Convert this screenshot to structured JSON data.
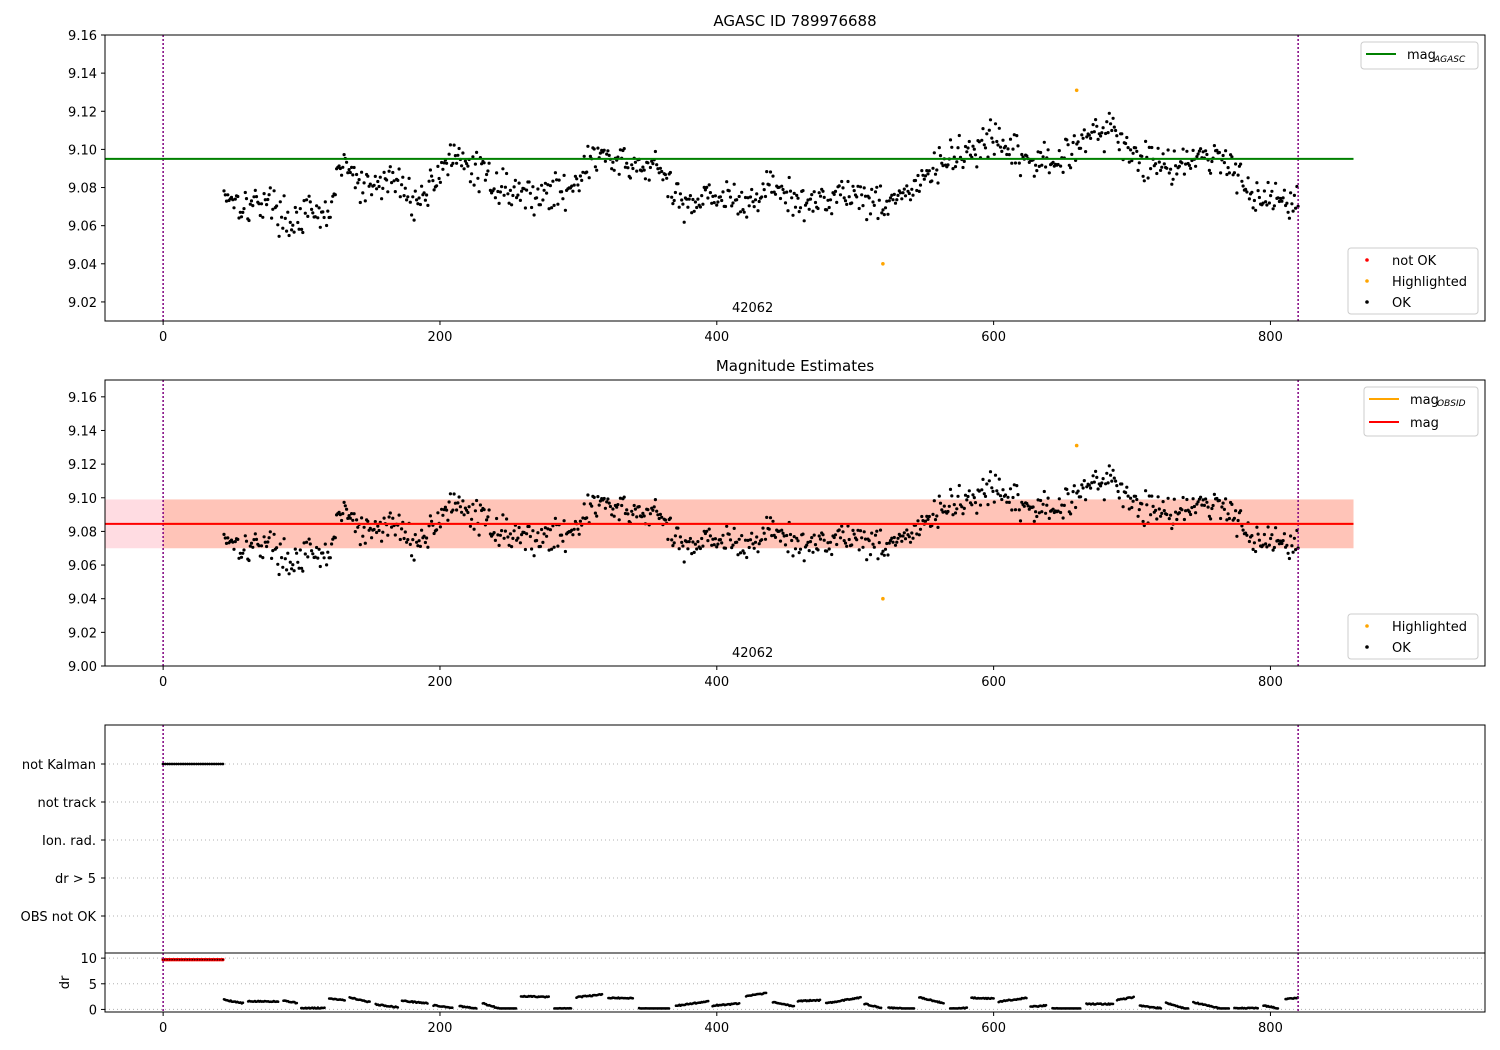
{
  "chart_data": [
    {
      "type": "scatter",
      "title": "AGASC ID 789976688",
      "xlabel": "",
      "ylabel": "",
      "xlim": [
        -42,
        955
      ],
      "ylim": [
        9.01,
        9.16
      ],
      "xticks": [
        "0",
        "200",
        "400",
        "600",
        "800"
      ],
      "yticks": [
        "9.02",
        "9.04",
        "9.06",
        "9.08",
        "9.10",
        "9.12",
        "9.14",
        "9.16"
      ],
      "obsid_label": "42062",
      "obsid_label_x": 410,
      "vlines": [
        0,
        820
      ],
      "mag_agasc": 9.095,
      "hline_range": [
        -42,
        860
      ],
      "highlighted_points": [
        {
          "x": 520,
          "y": 9.04
        },
        {
          "x": 660,
          "y": 9.131
        }
      ],
      "ok_series": {
        "x_start": 44,
        "x_end": 820,
        "count": 860,
        "seed": 17
      },
      "segments": [
        {
          "x": 44,
          "y": 9.078
        },
        {
          "x": 60,
          "y": 9.07
        },
        {
          "x": 75,
          "y": 9.074
        },
        {
          "x": 90,
          "y": 9.062
        },
        {
          "x": 105,
          "y": 9.066
        },
        {
          "x": 118,
          "y": 9.064
        },
        {
          "x": 130,
          "y": 9.094
        },
        {
          "x": 145,
          "y": 9.078
        },
        {
          "x": 165,
          "y": 9.085
        },
        {
          "x": 185,
          "y": 9.072
        },
        {
          "x": 205,
          "y": 9.095
        },
        {
          "x": 225,
          "y": 9.09
        },
        {
          "x": 245,
          "y": 9.08
        },
        {
          "x": 265,
          "y": 9.076
        },
        {
          "x": 290,
          "y": 9.078
        },
        {
          "x": 315,
          "y": 9.098
        },
        {
          "x": 335,
          "y": 9.09
        },
        {
          "x": 355,
          "y": 9.092
        },
        {
          "x": 375,
          "y": 9.07
        },
        {
          "x": 395,
          "y": 9.078
        },
        {
          "x": 420,
          "y": 9.07
        },
        {
          "x": 440,
          "y": 9.082
        },
        {
          "x": 460,
          "y": 9.07
        },
        {
          "x": 490,
          "y": 9.078
        },
        {
          "x": 520,
          "y": 9.072
        },
        {
          "x": 545,
          "y": 9.08
        },
        {
          "x": 560,
          "y": 9.092
        },
        {
          "x": 580,
          "y": 9.098
        },
        {
          "x": 600,
          "y": 9.104
        },
        {
          "x": 620,
          "y": 9.095
        },
        {
          "x": 645,
          "y": 9.092
        },
        {
          "x": 665,
          "y": 9.108
        },
        {
          "x": 685,
          "y": 9.11
        },
        {
          "x": 705,
          "y": 9.095
        },
        {
          "x": 725,
          "y": 9.092
        },
        {
          "x": 745,
          "y": 9.096
        },
        {
          "x": 770,
          "y": 9.094
        },
        {
          "x": 790,
          "y": 9.075
        },
        {
          "x": 820,
          "y": 9.074
        }
      ],
      "legend_top": [
        {
          "label": "mag",
          "subscript": "AGASC",
          "color": "#008000"
        }
      ],
      "legend_bottom": [
        {
          "label": "not OK",
          "color": "#ff0000"
        },
        {
          "label": "Highlighted",
          "color": "#ffa500"
        },
        {
          "label": "OK",
          "color": "#000000"
        }
      ]
    },
    {
      "type": "scatter",
      "title": "Magnitude Estimates",
      "xlabel": "",
      "ylabel": "",
      "xlim": [
        -42,
        955
      ],
      "ylim": [
        9.0,
        9.17
      ],
      "xticks": [
        "0",
        "200",
        "400",
        "600",
        "800"
      ],
      "yticks": [
        "9.00",
        "9.02",
        "9.04",
        "9.06",
        "9.08",
        "9.10",
        "9.12",
        "9.14",
        "9.16"
      ],
      "obsid_label": "42062",
      "obsid_label_x": 410,
      "vlines": [
        0,
        820
      ],
      "mag": 9.0845,
      "mag_band": [
        9.07,
        9.099
      ],
      "mag_obsid": 9.0845,
      "mag_obsid_band": [
        9.07,
        9.099
      ],
      "mag_obsid_range": [
        0,
        860
      ],
      "band_range": [
        -42,
        860
      ],
      "highlighted_points": [
        {
          "x": 520,
          "y": 9.04
        },
        {
          "x": 660,
          "y": 9.131
        }
      ],
      "legend_top": [
        {
          "label": "mag",
          "subscript": "OBSID",
          "color": "#ffa500"
        },
        {
          "label": "mag",
          "subscript": "",
          "color": "#ff0000"
        }
      ],
      "legend_bottom": [
        {
          "label": "Highlighted",
          "color": "#ffa500"
        },
        {
          "label": "OK",
          "color": "#000000"
        }
      ]
    },
    {
      "type": "scatter",
      "title": "",
      "xlim": [
        -42,
        955
      ],
      "categories": [
        "not Kalman",
        "not track",
        "Ion. rad.",
        "dr > 5",
        "OBS not OK"
      ],
      "flag_points": [
        {
          "category": "not Kalman",
          "x_start": 0,
          "x_end": 44
        }
      ],
      "vlines": [
        0,
        820
      ],
      "xticks": [
        "0",
        "200",
        "400",
        "600",
        "800"
      ]
    },
    {
      "type": "scatter",
      "title": "",
      "ylabel": "dr",
      "xlim": [
        -42,
        955
      ],
      "ylim": [
        -0.5,
        11
      ],
      "yticks": [
        "0",
        "5",
        "10"
      ],
      "xticks": [
        "0",
        "200",
        "400",
        "600",
        "800"
      ],
      "vlines": [
        0,
        820
      ],
      "saturated": {
        "x_start": 0,
        "x_end": 44,
        "y": 9.7
      },
      "dr_series": {
        "x_start": 44,
        "x_end": 820,
        "seed": 5
      }
    }
  ]
}
